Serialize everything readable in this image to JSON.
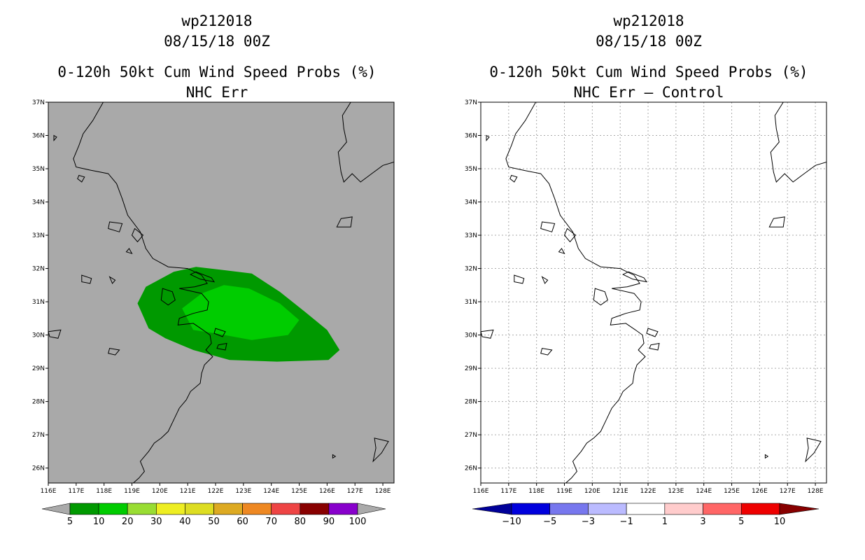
{
  "left_panel": {
    "storm_id": "wp212018",
    "datetime": "08/15/18 00Z",
    "product": "0-120h 50kt Cum Wind Speed Probs (%)",
    "subtitle": "NHC Err",
    "background_color": "#a9a9a9",
    "colorbar": {
      "labels": [
        "5",
        "10",
        "20",
        "30",
        "40",
        "50",
        "60",
        "70",
        "80",
        "90",
        "100"
      ],
      "colors": [
        "#009900",
        "#00cc00",
        "#99dd33",
        "#eeee22",
        "#dddd22",
        "#ddaa22",
        "#ee8822",
        "#ee4444",
        "#880000",
        "#8800cc"
      ],
      "end_arrow_color": "#aaaaaa"
    },
    "probability_contours": [
      {
        "min_percent": 5,
        "color": "#009900"
      },
      {
        "min_percent": 10,
        "color": "#00cc00"
      }
    ]
  },
  "right_panel": {
    "storm_id": "wp212018",
    "datetime": "08/15/18 00Z",
    "product": "0-120h 50kt Cum Wind Speed Probs (%)",
    "subtitle": "NHC Err – Control",
    "background_color": "#ffffff",
    "colorbar": {
      "labels": [
        "−10",
        "−5",
        "−3",
        "−1",
        "1",
        "3",
        "5",
        "10"
      ],
      "colors": [
        "#0000dd",
        "#7777ee",
        "#bbbbff",
        "#ffffff",
        "#ffcccc",
        "#ff6666",
        "#ee0000"
      ],
      "left_arrow_color": "#000099",
      "right_arrow_color": "#880000"
    }
  },
  "axes": {
    "lat_labels": [
      "37N",
      "36N",
      "35N",
      "34N",
      "33N",
      "32N",
      "31N",
      "30N",
      "29N",
      "28N",
      "27N",
      "26N"
    ],
    "lon_labels": [
      "116E",
      "117E",
      "118E",
      "119E",
      "120E",
      "121E",
      "122E",
      "123E",
      "124E",
      "125E",
      "126E",
      "127E",
      "128E"
    ],
    "lat_range": [
      25.55,
      37.0
    ],
    "lon_range": [
      116.0,
      128.4
    ]
  }
}
